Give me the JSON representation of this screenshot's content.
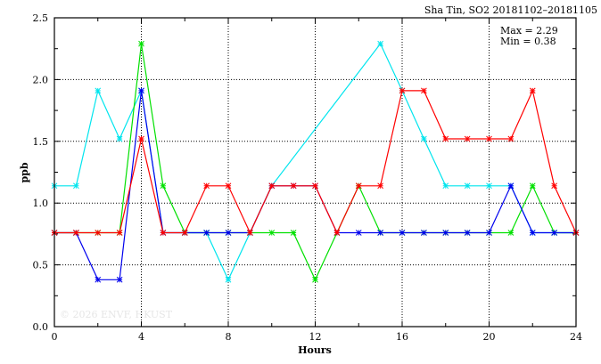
{
  "chart_data": {
    "type": "line",
    "title": "Sha Tin, SO2 20181102–20181105",
    "xlabel": "Hours",
    "ylabel": "ppb",
    "xlim": [
      0,
      24
    ],
    "ylim": [
      0,
      2.5
    ],
    "xticks": [
      "0",
      "4",
      "8",
      "12",
      "16",
      "20",
      "24"
    ],
    "yticks": [
      "0.0",
      "0.5",
      "1.0",
      "1.5",
      "2.0",
      "2.5"
    ],
    "grid": true,
    "annotations": {
      "max": "Max = 2.29",
      "min": "Min = 0.38"
    },
    "watermark": "© 2026  ENVF, HKUST",
    "series": [
      {
        "name": "cyan",
        "color": "#00e5ee",
        "x": [
          0,
          1,
          2,
          3,
          4,
          5,
          6,
          7,
          8,
          9,
          10,
          15,
          16,
          17,
          18,
          19,
          20,
          21,
          22,
          23,
          24
        ],
        "values": [
          1.14,
          1.14,
          1.91,
          1.52,
          1.91,
          0.76,
          0.76,
          0.76,
          0.38,
          0.76,
          1.14,
          2.29,
          1.91,
          1.52,
          1.14,
          1.14,
          1.14,
          1.14,
          0.76,
          0.76,
          0.76
        ]
      },
      {
        "name": "green",
        "color": "#00e000",
        "x": [
          0,
          1,
          2,
          3,
          4,
          5,
          6,
          7,
          8,
          9,
          10,
          11,
          12,
          13,
          14,
          15,
          16,
          17,
          18,
          19,
          20,
          21,
          22,
          23,
          24
        ],
        "values": [
          0.76,
          0.76,
          0.76,
          0.76,
          2.29,
          1.14,
          0.76,
          0.76,
          0.76,
          0.76,
          0.76,
          0.76,
          0.38,
          0.76,
          1.14,
          0.76,
          0.76,
          0.76,
          0.76,
          0.76,
          0.76,
          0.76,
          1.14,
          0.76,
          0.76
        ]
      },
      {
        "name": "blue",
        "color": "#0000ee",
        "x": [
          0,
          1,
          2,
          3,
          4,
          5,
          6,
          7,
          8,
          9,
          10,
          11,
          12,
          13,
          14,
          15,
          16,
          17,
          18,
          19,
          20,
          21,
          22,
          23,
          24
        ],
        "values": [
          0.76,
          0.76,
          0.38,
          0.38,
          1.91,
          0.76,
          0.76,
          0.76,
          0.76,
          0.76,
          1.14,
          1.14,
          1.14,
          0.76,
          0.76,
          0.76,
          0.76,
          0.76,
          0.76,
          0.76,
          0.76,
          1.14,
          0.76,
          0.76,
          0.76
        ]
      },
      {
        "name": "red",
        "color": "#ff0000",
        "x": [
          0,
          1,
          2,
          3,
          4,
          5,
          6,
          7,
          8,
          9,
          10,
          11,
          12,
          13,
          14,
          15,
          16,
          17,
          18,
          19,
          20,
          21,
          22,
          23,
          24
        ],
        "values": [
          0.76,
          0.76,
          0.76,
          0.76,
          1.52,
          0.76,
          0.76,
          1.14,
          1.14,
          0.76,
          1.14,
          1.14,
          1.14,
          0.76,
          1.14,
          1.14,
          1.91,
          1.91,
          1.52,
          1.52,
          1.52,
          1.52,
          1.91,
          1.14,
          0.76
        ]
      }
    ]
  }
}
